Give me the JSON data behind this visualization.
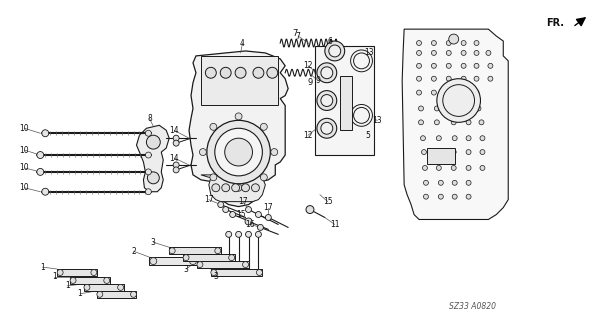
{
  "background_color": "#ffffff",
  "diagram_code": "SZ33 A0820",
  "fr_label": "FR.",
  "fig_width": 6.13,
  "fig_height": 3.2,
  "dpi": 100,
  "line_color": "#1a1a1a",
  "label_color": "#111111"
}
